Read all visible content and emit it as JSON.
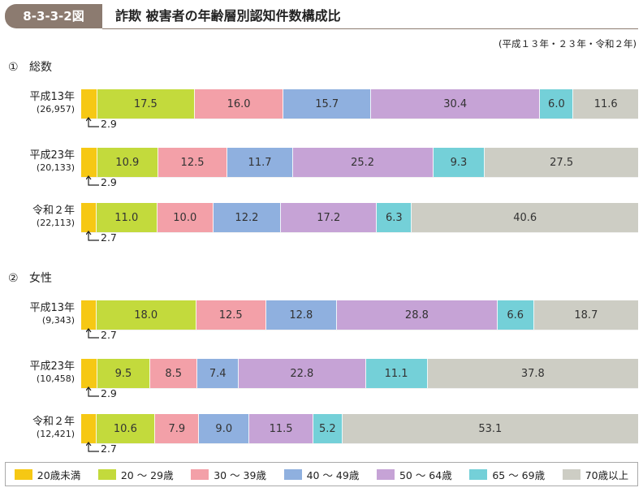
{
  "figure_id": "8-3-3-2図",
  "title": "詐欺 被害者の年齢層別認知件数構成比",
  "period": "(平成１３年・２３年・令和２年)",
  "colors": {
    "u20": "#f6c814",
    "a20_29": "#c3da3c",
    "a30_39": "#f3a0a8",
    "a40_49": "#8fb0df",
    "a50_64": "#c6a3d6",
    "a65_69": "#74d0d8",
    "o70": "#cdcdc4"
  },
  "legend": [
    {
      "key": "u20",
      "label": "20歳未満"
    },
    {
      "key": "a20_29",
      "label": "20 ～ 29歳"
    },
    {
      "key": "a30_39",
      "label": "30 ～ 39歳"
    },
    {
      "key": "a40_49",
      "label": "40 ～ 49歳"
    },
    {
      "key": "a50_64",
      "label": "50 ～ 64歳"
    },
    {
      "key": "a65_69",
      "label": "65 ～ 69歳"
    },
    {
      "key": "o70",
      "label": "70歳以上"
    }
  ],
  "chart_data": [
    {
      "type": "bar",
      "orientation": "horizontal",
      "stacked": true,
      "title": "①　総数",
      "section_number": "①",
      "section_label": "総数",
      "categories": [
        "平成１３年",
        "平成２３年",
        "令和２年"
      ],
      "category_labels": [
        "平成13年",
        "平成23年",
        "令和２年"
      ],
      "counts": [
        "(26,957)",
        "(20,133)",
        "(22,113)"
      ],
      "series": [
        {
          "name": "20歳未満",
          "values": [
            2.9,
            2.9,
            2.7
          ]
        },
        {
          "name": "20 ～ 29歳",
          "values": [
            17.5,
            10.9,
            11.0
          ]
        },
        {
          "name": "30 ～ 39歳",
          "values": [
            16.0,
            12.5,
            10.0
          ]
        },
        {
          "name": "40 ～ 49歳",
          "values": [
            15.7,
            11.7,
            12.2
          ]
        },
        {
          "name": "50 ～ 64歳",
          "values": [
            30.4,
            25.2,
            17.2
          ]
        },
        {
          "name": "65 ～ 69歳",
          "values": [
            6.0,
            9.3,
            6.3
          ]
        },
        {
          "name": "70歳以上",
          "values": [
            11.6,
            27.5,
            40.6
          ]
        }
      ]
    },
    {
      "type": "bar",
      "orientation": "horizontal",
      "stacked": true,
      "title": "②　女性",
      "section_number": "②",
      "section_label": "女性",
      "categories": [
        "平成１３年",
        "平成２３年",
        "令和２年"
      ],
      "category_labels": [
        "平成13年",
        "平成23年",
        "令和２年"
      ],
      "counts": [
        "(9,343)",
        "(10,458)",
        "(12,421)"
      ],
      "series": [
        {
          "name": "20歳未満",
          "values": [
            2.7,
            2.9,
            2.7
          ]
        },
        {
          "name": "20 ～ 29歳",
          "values": [
            18.0,
            9.5,
            10.6
          ]
        },
        {
          "name": "30 ～ 39歳",
          "values": [
            12.5,
            8.5,
            7.9
          ]
        },
        {
          "name": "40 ～ 49歳",
          "values": [
            12.8,
            7.4,
            9.0
          ]
        },
        {
          "name": "50 ～ 64歳",
          "values": [
            28.8,
            22.8,
            11.5
          ]
        },
        {
          "name": "65 ～ 69歳",
          "values": [
            6.6,
            11.1,
            5.2
          ]
        },
        {
          "name": "70歳以上",
          "values": [
            18.7,
            37.8,
            53.1
          ]
        }
      ]
    }
  ]
}
